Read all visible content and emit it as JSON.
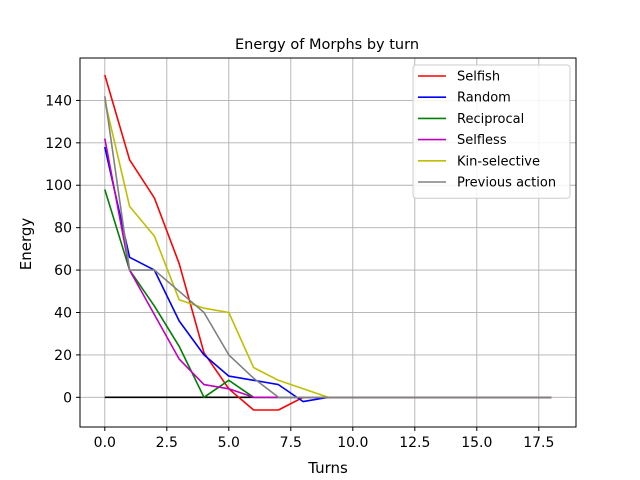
{
  "chart_data": {
    "type": "line",
    "title": "Energy of Morphs by turn",
    "xlabel": "Turns",
    "ylabel": "Energy",
    "xlim": [
      -1,
      19
    ],
    "ylim": [
      -14,
      160
    ],
    "xticks": [
      0,
      2.5,
      5,
      7.5,
      10,
      12.5,
      15,
      17.5
    ],
    "xtick_labels": [
      "0.0",
      "2.5",
      "5.0",
      "7.5",
      "10.0",
      "12.5",
      "15.0",
      "17.5"
    ],
    "yticks": [
      0,
      20,
      40,
      60,
      80,
      100,
      120,
      140
    ],
    "ytick_labels": [
      "0",
      "20",
      "40",
      "60",
      "80",
      "100",
      "120",
      "140"
    ],
    "grid": true,
    "legend_position": "top-right",
    "series": [
      {
        "name": "Selfish",
        "color": "#ff0000",
        "x": [
          0,
          1,
          2,
          3,
          4,
          5,
          6,
          7,
          8,
          9,
          18
        ],
        "y": [
          152,
          112,
          94,
          63,
          21,
          4,
          -6,
          -6,
          0,
          0,
          0
        ]
      },
      {
        "name": "Random",
        "color": "#0000ff",
        "x": [
          0,
          1,
          2,
          3,
          4,
          5,
          6,
          7,
          8,
          9,
          18
        ],
        "y": [
          118,
          66,
          60,
          36,
          20,
          10,
          8,
          6,
          -2,
          0,
          0
        ]
      },
      {
        "name": "Reciprocal",
        "color": "#008000",
        "x": [
          0,
          1,
          2,
          3,
          4,
          5,
          6,
          18
        ],
        "y": [
          98,
          60,
          43,
          24,
          0,
          8,
          0,
          0
        ]
      },
      {
        "name": "Selfless",
        "color": "#bf00bf",
        "x": [
          0,
          1,
          2,
          3,
          4,
          5,
          6,
          18
        ],
        "y": [
          122,
          60,
          39,
          18,
          6,
          4,
          0,
          0
        ]
      },
      {
        "name": "Kin-selective",
        "color": "#bfbf00",
        "x": [
          0,
          1,
          2,
          3,
          4,
          5,
          6,
          7,
          8,
          9,
          18
        ],
        "y": [
          140,
          90,
          76,
          46,
          42,
          40,
          14,
          8,
          4,
          0,
          0
        ]
      },
      {
        "name": "Previous action",
        "color": "#808080",
        "x": [
          0,
          1,
          2,
          3,
          4,
          5,
          6,
          7,
          18
        ],
        "y": [
          142,
          60,
          60,
          50,
          40,
          20,
          9,
          0,
          0
        ]
      }
    ],
    "baseline": {
      "color": "#000000",
      "x": [
        0,
        18
      ],
      "y": [
        0,
        0
      ]
    }
  }
}
